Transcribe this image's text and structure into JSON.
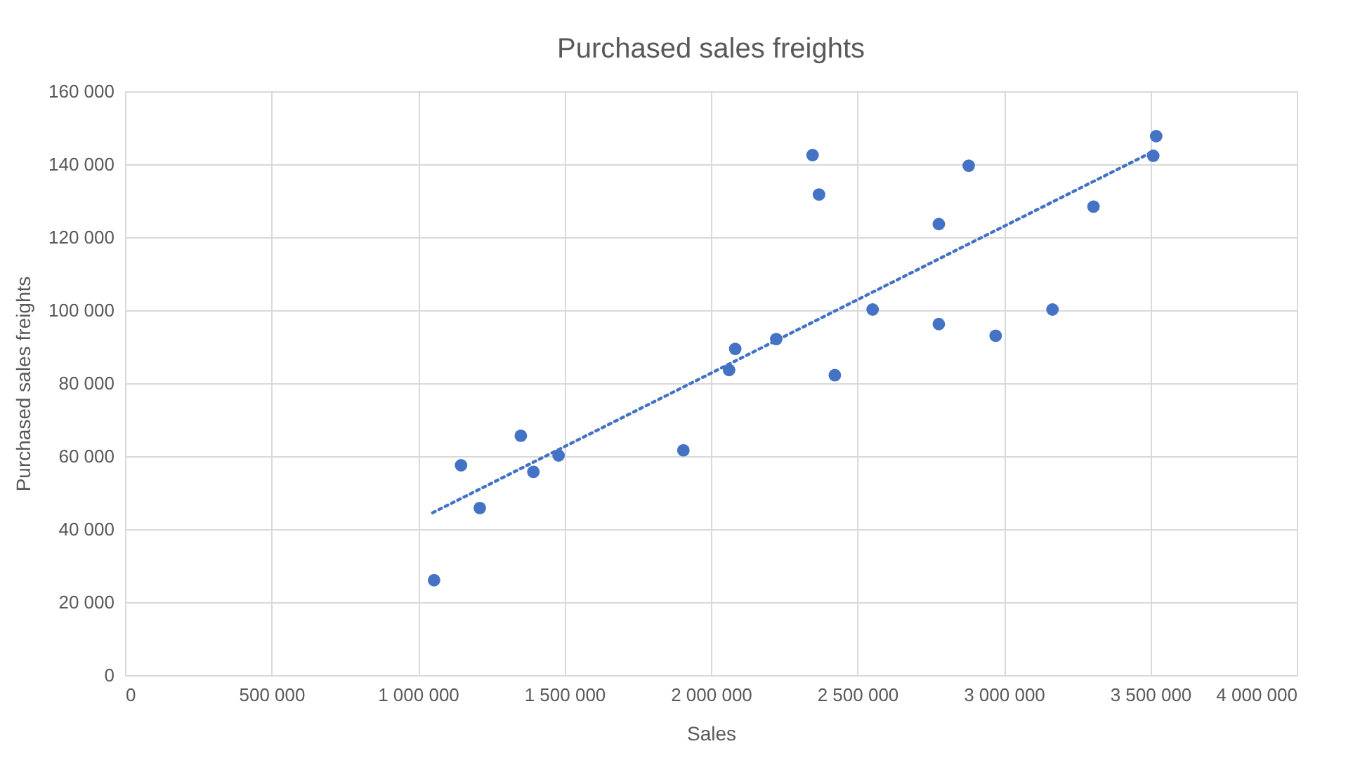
{
  "chart_data": {
    "type": "scatter",
    "title": "Purchased sales freights",
    "xlabel": "Sales",
    "ylabel": "Purchased sales freights",
    "xlim": [
      0,
      4000000
    ],
    "xticks": [
      0,
      {
        "value": 500000,
        "label": "500 000"
      },
      {
        "value": 1000000,
        "label": "1 000 000"
      },
      {
        "value": 1500000,
        "label": "1 500 000"
      },
      {
        "value": 2000000,
        "label": "2 000 000"
      },
      {
        "value": 2500000,
        "label": "2 500 000"
      },
      {
        "value": 3000000,
        "label": "3 000 000"
      },
      {
        "value": 3500000,
        "label": "3 500 000"
      },
      {
        "value": 4000000,
        "label": "4 000 000"
      }
    ],
    "ylim": [
      0,
      160000
    ],
    "yticks": [
      0,
      {
        "value": 20000,
        "label": "20 000"
      },
      {
        "value": 40000,
        "label": "40 000"
      },
      {
        "value": 60000,
        "label": "60 000"
      },
      {
        "value": 80000,
        "label": "80 000"
      },
      {
        "value": 100000,
        "label": "100 000"
      },
      {
        "value": 120000,
        "label": "120 000"
      },
      {
        "value": 140000,
        "label": "140 000"
      },
      {
        "value": 160000,
        "label": "160 000"
      }
    ],
    "grid": true,
    "legend": false,
    "series": [
      {
        "color": "#4472c4",
        "marker": "circle",
        "x": [
          1055000,
          1147000,
          1211000,
          1351000,
          1394000,
          1480000,
          1906000,
          2062000,
          2083000,
          2223000,
          2347000,
          2369000,
          2423000,
          2552000,
          2778000,
          2778000,
          2880000,
          2972000,
          3166000,
          3306000,
          3510000,
          3520000
        ],
        "values": [
          26000,
          57500,
          45800,
          65600,
          55700,
          60200,
          61600,
          83600,
          89400,
          92100,
          142500,
          131700,
          82200,
          100200,
          123600,
          96200,
          139600,
          93000,
          100200,
          128400,
          142300,
          147700
        ]
      },
      {
        "type": "line",
        "color": "#4472c4",
        "line_style": "dotted",
        "x": [
          1050000,
          3510000
        ],
        "values": [
          44500,
          143500
        ]
      }
    ]
  }
}
